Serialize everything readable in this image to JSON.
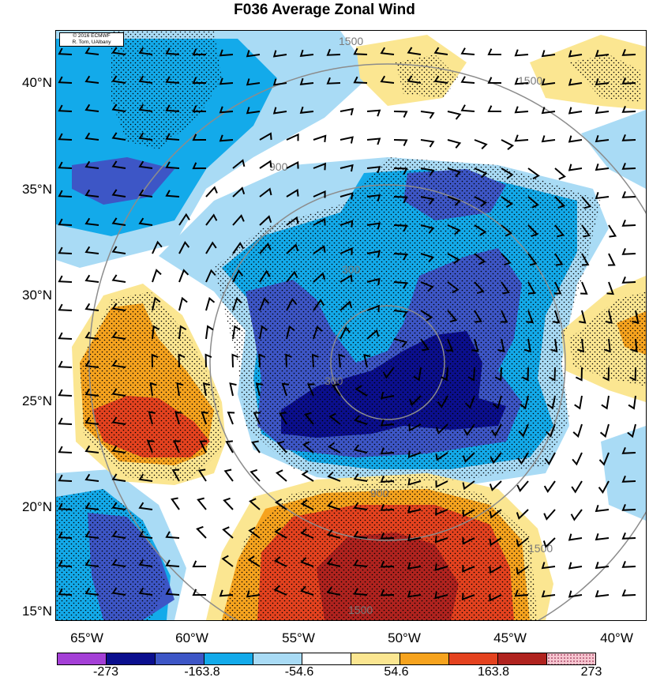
{
  "title": "F036 Average Zonal Wind",
  "credit": {
    "line1": "© 2016 ECMWF",
    "line2": "R. Torn, UAlbany"
  },
  "lat_labels": [
    "40°N",
    "35°N",
    "30°N",
    "25°N",
    "20°N",
    "15°N"
  ],
  "lon_labels": [
    "65°W",
    "60°W",
    "55°W",
    "50°W",
    "45°W",
    "40°W"
  ],
  "range_rings": [
    "300",
    "900",
    "1500"
  ],
  "colorbar": {
    "labels": [
      "-273",
      "-163.8",
      "-54.6",
      "54.6",
      "163.8",
      "273"
    ],
    "colors": [
      "#a43fd6",
      "#0b0f8e",
      "#3d56c6",
      "#13aaea",
      "#a9dbf5",
      "#ffffff",
      "#fbe691",
      "#f6a31e",
      "#e4421f",
      "#b0231f",
      "#f6c6d0"
    ]
  }
}
